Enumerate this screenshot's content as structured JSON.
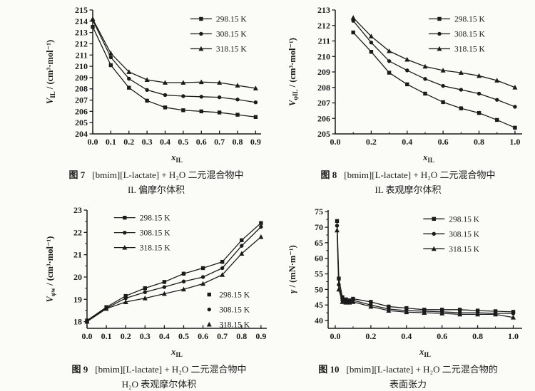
{
  "page": {
    "background": "#fbfbf8",
    "ink": "#1b1b1b"
  },
  "chart_data": [
    {
      "id": "figure-7",
      "type": "line",
      "xlabel_segments": [
        {
          "t": "x",
          "i": true
        },
        {
          "t": "IL",
          "sub": true
        }
      ],
      "ylabel_segments": [
        {
          "t": "V",
          "i": true
        },
        {
          "t": "IL",
          "sub": true
        },
        {
          "t": " / (cm³·mol⁻¹)"
        }
      ],
      "xlim": [
        0,
        0.93
      ],
      "ylim": [
        204,
        215
      ],
      "xticks": [
        0.0,
        0.1,
        0.2,
        0.3,
        0.4,
        0.5,
        0.6,
        0.7,
        0.8,
        0.9
      ],
      "xminor": [],
      "yticks": [
        204,
        205,
        206,
        207,
        208,
        209,
        210,
        211,
        212,
        213,
        214,
        215
      ],
      "yminor": [],
      "x": [
        0.0,
        0.1,
        0.2,
        0.3,
        0.4,
        0.5,
        0.6,
        0.7,
        0.8,
        0.9
      ],
      "series": [
        {
          "name": "298.15 K",
          "marker": "square",
          "values": [
            213.5,
            210.1,
            208.1,
            206.95,
            206.35,
            206.1,
            206.0,
            205.9,
            205.7,
            205.5
          ]
        },
        {
          "name": "308.15 K",
          "marker": "circle",
          "values": [
            214.1,
            210.8,
            208.9,
            207.9,
            207.45,
            207.35,
            207.3,
            207.25,
            207.05,
            206.8
          ]
        },
        {
          "name": "318.15 K",
          "marker": "triangle",
          "values": [
            214.2,
            211.15,
            209.5,
            208.8,
            208.55,
            208.55,
            208.6,
            208.55,
            208.3,
            208.05
          ]
        }
      ],
      "legends": [
        {
          "x": 0.58,
          "y": 0.02,
          "line": true
        }
      ],
      "caption": {
        "label": "图 7",
        "line1": "[bmim][L-lactate] + H₂O 二元混合物中",
        "line2": "IL 偏摩尔体积"
      }
    },
    {
      "id": "figure-8",
      "type": "line",
      "xlabel_segments": [
        {
          "t": "x",
          "i": true
        },
        {
          "t": "IL",
          "sub": true
        }
      ],
      "ylabel_segments": [
        {
          "t": "V",
          "i": true
        },
        {
          "t": "φIL",
          "sub": true
        },
        {
          "t": " / (cm³·mol⁻¹)"
        }
      ],
      "xlim": [
        0,
        1.04
      ],
      "ylim": [
        205,
        213
      ],
      "xticks": [
        0.0,
        0.2,
        0.4,
        0.6,
        0.8,
        1.0
      ],
      "xminor": [
        0.1,
        0.3,
        0.5,
        0.7,
        0.9
      ],
      "yticks": [
        205,
        206,
        207,
        208,
        209,
        210,
        211,
        212,
        213
      ],
      "yminor": [],
      "x": [
        0.1,
        0.2,
        0.3,
        0.4,
        0.5,
        0.6,
        0.7,
        0.8,
        0.9,
        1.0
      ],
      "series": [
        {
          "name": "298.15 K",
          "marker": "square",
          "values": [
            211.55,
            210.3,
            208.95,
            208.2,
            207.6,
            207.05,
            206.65,
            206.35,
            205.9,
            205.4
          ]
        },
        {
          "name": "308.15 K",
          "marker": "circle",
          "values": [
            212.3,
            210.9,
            209.7,
            209.1,
            208.55,
            208.1,
            207.85,
            207.6,
            207.2,
            206.75
          ]
        },
        {
          "name": "318.15 K",
          "marker": "triangle",
          "values": [
            212.5,
            211.3,
            210.35,
            209.8,
            209.35,
            209.1,
            208.95,
            208.75,
            208.45,
            208.0
          ]
        }
      ],
      "legends": [
        {
          "x": 0.5,
          "y": 0.02,
          "line": true
        }
      ],
      "caption": {
        "label": "图 8",
        "line1": "[bmim][L-lactate] + H₂O 二元混合物中",
        "line2": "IL 表观摩尔体积"
      }
    },
    {
      "id": "figure-9",
      "type": "line",
      "xlabel_segments": [
        {
          "t": "x",
          "i": true
        },
        {
          "t": "IL",
          "sub": true
        }
      ],
      "ylabel_segments": [
        {
          "t": "V",
          "i": true
        },
        {
          "t": "φw",
          "sub": true
        },
        {
          "t": " / (cm³·mol⁻¹)"
        }
      ],
      "xlim": [
        0,
        0.93
      ],
      "ylim": [
        17.7,
        23
      ],
      "xticks": [
        0.0,
        0.1,
        0.2,
        0.3,
        0.4,
        0.5,
        0.6,
        0.7,
        0.8,
        0.9
      ],
      "xminor": [],
      "yticks": [
        18,
        19,
        20,
        21,
        22,
        23
      ],
      "yminor": [
        18.5,
        19.5,
        20.5,
        21.5,
        22.5
      ],
      "x": [
        0.0,
        0.1,
        0.2,
        0.3,
        0.4,
        0.5,
        0.6,
        0.7,
        0.8,
        0.9
      ],
      "series": [
        {
          "name": "298.15 K",
          "marker": "square",
          "values": [
            18.05,
            18.65,
            19.15,
            19.5,
            19.78,
            20.15,
            20.4,
            20.68,
            21.65,
            22.42
          ]
        },
        {
          "name": "308.15 K",
          "marker": "circle",
          "values": [
            18.05,
            18.6,
            19.05,
            19.32,
            19.55,
            19.8,
            20.0,
            20.4,
            21.4,
            22.25
          ]
        },
        {
          "name": "318.15 K",
          "marker": "triangle",
          "values": [
            18.0,
            18.58,
            18.88,
            19.05,
            19.25,
            19.45,
            19.7,
            20.1,
            21.05,
            21.8
          ]
        }
      ],
      "legends": [
        {
          "x": 0.15,
          "y": 0.01,
          "line": true
        },
        {
          "x": 0.64,
          "y": 0.66,
          "line": false
        }
      ],
      "caption": {
        "label": "图 9",
        "line1": "[bmim][L-lactate] + H₂O 二元混合物中",
        "line2": "H₂O 表观摩尔体积"
      }
    },
    {
      "id": "figure-10",
      "type": "line",
      "xlabel_segments": [
        {
          "t": "x",
          "i": true
        },
        {
          "t": "IL",
          "sub": true
        }
      ],
      "ylabel_segments": [
        {
          "t": "γ",
          "i": true
        },
        {
          "t": " / (mN·m⁻¹)"
        }
      ],
      "xlim": [
        -0.04,
        1.05
      ],
      "ylim": [
        37.5,
        75.5
      ],
      "xticks": [
        0.0,
        0.2,
        0.4,
        0.6,
        0.8,
        1.0
      ],
      "xminor": [
        0.1,
        0.3,
        0.5,
        0.7,
        0.9
      ],
      "yticks": [
        40,
        45,
        50,
        55,
        60,
        65,
        70,
        75
      ],
      "yminor": [
        42.5,
        47.5,
        52.5,
        57.5,
        62.5,
        67.5,
        72.5
      ],
      "x": [
        0.01,
        0.02,
        0.04,
        0.06,
        0.08,
        0.1,
        0.2,
        0.3,
        0.4,
        0.5,
        0.6,
        0.7,
        0.8,
        0.9,
        1.0
      ],
      "series": [
        {
          "name": "298.15 K",
          "marker": "square",
          "values": [
            72,
            53.5,
            47.5,
            46.8,
            46.5,
            47,
            46,
            44.5,
            44,
            43.5,
            43.5,
            43.5,
            43.2,
            43,
            42.8
          ]
        },
        {
          "name": "308.15 K",
          "marker": "circle",
          "values": [
            70.5,
            51.5,
            46.5,
            46,
            46,
            46.5,
            45,
            43.7,
            43.2,
            43,
            42.8,
            42.5,
            42.5,
            42.3,
            42.3
          ]
        },
        {
          "name": "318.15 K",
          "marker": "triangle",
          "values": [
            69,
            50,
            46,
            45.8,
            45.8,
            46,
            44.5,
            43.2,
            42.7,
            42.5,
            42.3,
            42,
            42,
            42,
            41
          ]
        }
      ],
      "legends": [
        {
          "x": 0.49,
          "y": 0.02,
          "line": true
        }
      ],
      "caption": {
        "label": "图 10",
        "line1": "[bmim][L-lactate] + H₂O 二元混合物的",
        "line2": "表面张力"
      }
    }
  ]
}
